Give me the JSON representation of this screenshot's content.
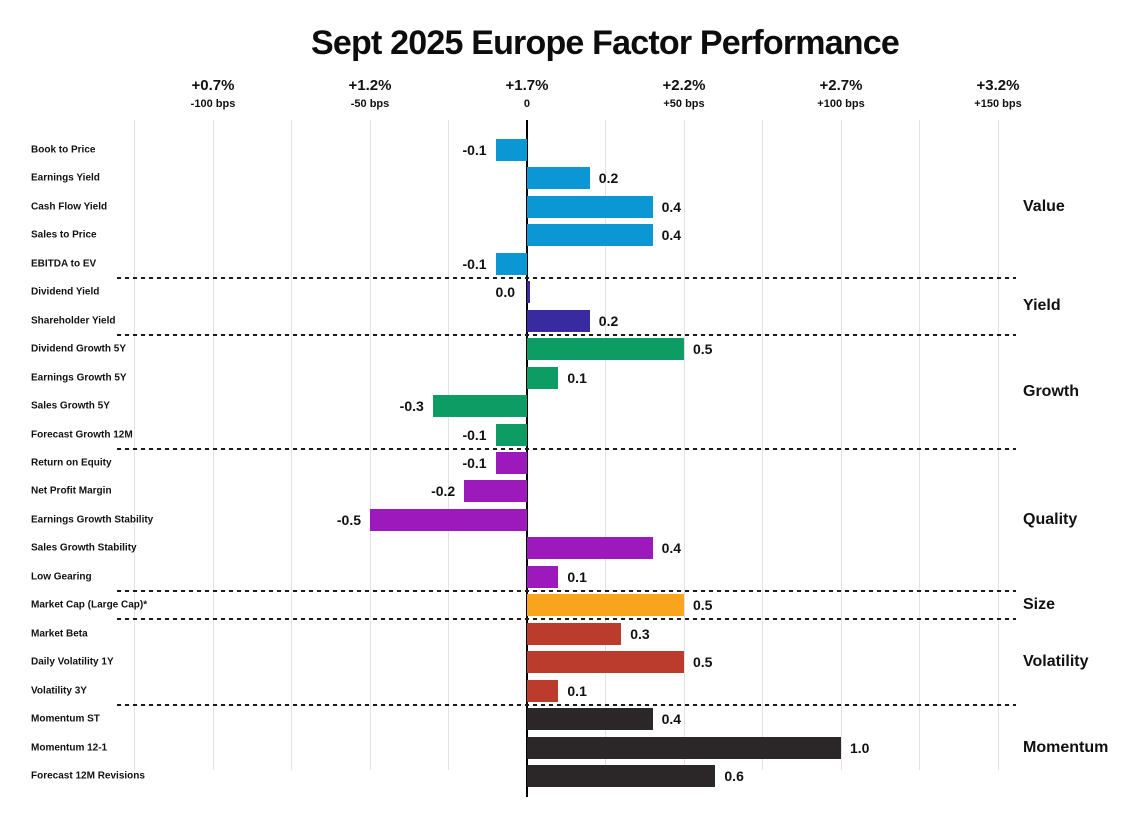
{
  "chart_data": {
    "type": "bar",
    "orientation": "horizontal",
    "title": "Sept 2025 Europe Factor Performance",
    "x_axis": {
      "ticks": [
        {
          "pct_label": "+0.7%",
          "bps_label": "-100 bps",
          "bps": -100
        },
        {
          "pct_label": "+1.2%",
          "bps_label": "-50 bps",
          "bps": -50
        },
        {
          "pct_label": "+1.7%",
          "bps_label": "0",
          "bps": 0
        },
        {
          "pct_label": "+2.2%",
          "bps_label": "+50 bps",
          "bps": 50
        },
        {
          "pct_label": "+2.7%",
          "bps_label": "+100 bps",
          "bps": 100
        },
        {
          "pct_label": "+3.2%",
          "bps_label": "+150 bps",
          "bps": 150
        }
      ],
      "xlim_bps": [
        -125,
        150
      ],
      "grid_step_bps": 25,
      "grid": true
    },
    "groups": [
      {
        "name": "Value",
        "color": "#0B97D4",
        "items": [
          {
            "label": "Book to Price",
            "value": -0.1,
            "value_label": "-0.1"
          },
          {
            "label": "Earnings Yield",
            "value": 0.2,
            "value_label": "0.2"
          },
          {
            "label": "Cash Flow Yield",
            "value": 0.4,
            "value_label": "0.4"
          },
          {
            "label": "Sales to Price",
            "value": 0.4,
            "value_label": "0.4"
          },
          {
            "label": "EBITDA to EV",
            "value": -0.1,
            "value_label": "-0.1"
          }
        ]
      },
      {
        "name": "Yield",
        "color": "#3A2AA1",
        "items": [
          {
            "label": "Dividend Yield",
            "value": 0.0,
            "value_label": "0.0"
          },
          {
            "label": "Shareholder Yield",
            "value": 0.2,
            "value_label": "0.2"
          }
        ]
      },
      {
        "name": "Growth",
        "color": "#0D9C63",
        "items": [
          {
            "label": "Dividend Growth 5Y",
            "value": 0.5,
            "value_label": "0.5"
          },
          {
            "label": "Earnings Growth 5Y",
            "value": 0.1,
            "value_label": "0.1"
          },
          {
            "label": "Sales Growth 5Y",
            "value": -0.3,
            "value_label": "-0.3"
          },
          {
            "label": "Forecast Growth 12M",
            "value": -0.1,
            "value_label": "-0.1"
          }
        ]
      },
      {
        "name": "Quality",
        "color": "#9C1ABC",
        "items": [
          {
            "label": "Return on Equity",
            "value": -0.1,
            "value_label": "-0.1"
          },
          {
            "label": "Net Profit Margin",
            "value": -0.2,
            "value_label": "-0.2"
          },
          {
            "label": "Earnings Growth Stability",
            "value": -0.5,
            "value_label": "-0.5"
          },
          {
            "label": "Sales Growth Stability",
            "value": 0.4,
            "value_label": "0.4"
          },
          {
            "label": "Low Gearing",
            "value": 0.1,
            "value_label": "0.1"
          }
        ]
      },
      {
        "name": "Size",
        "color": "#F9A41D",
        "items": [
          {
            "label": "Market Cap (Large Cap)*",
            "value": 0.5,
            "value_label": "0.5"
          }
        ]
      },
      {
        "name": "Volatility",
        "color": "#BB3B2C",
        "items": [
          {
            "label": "Market Beta",
            "value": 0.3,
            "value_label": "0.3"
          },
          {
            "label": "Daily Volatility 1Y",
            "value": 0.5,
            "value_label": "0.5"
          },
          {
            "label": "Volatility 3Y",
            "value": 0.1,
            "value_label": "0.1"
          }
        ]
      },
      {
        "name": "Momentum",
        "color": "#2B2728",
        "items": [
          {
            "label": "Momentum ST",
            "value": 0.4,
            "value_label": "0.4"
          },
          {
            "label": "Momentum 12-1",
            "value": 1.0,
            "value_label": "1.0"
          },
          {
            "label": "Forecast 12M Revisions",
            "value": 0.6,
            "value_label": "0.6"
          }
        ]
      }
    ]
  }
}
